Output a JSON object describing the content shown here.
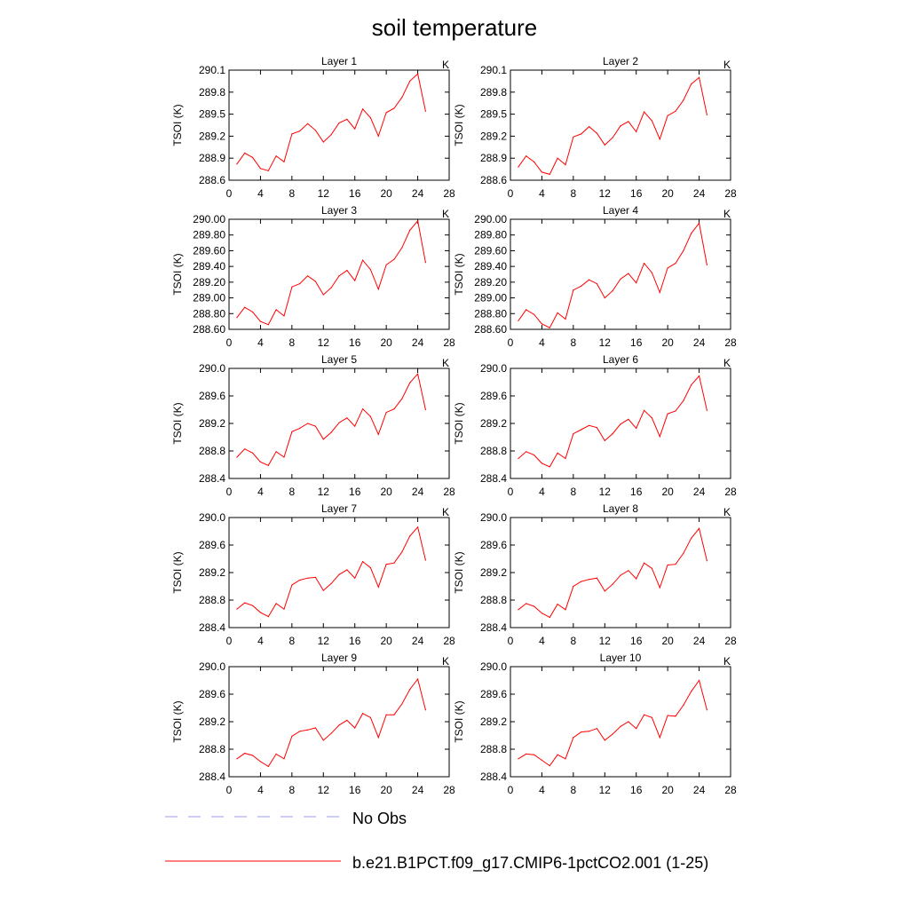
{
  "figure": {
    "title": "soil temperature"
  },
  "legend": {
    "obs_label": "No Obs",
    "obs_color": "#9999ff",
    "model_label": "b.e21.B1PCT.f09_g17.CMIP6-1pctCO2.001 (1-25)",
    "model_color": "#ff0000"
  },
  "chart_data": [
    {
      "type": "line",
      "title": "Layer 1",
      "units_label": "K",
      "ylabel": "TSOI  (K)",
      "xlim": [
        0,
        28
      ],
      "xticks": [
        0,
        4,
        8,
        12,
        16,
        20,
        24,
        28
      ],
      "ylim": [
        288.6,
        290.1
      ],
      "yticks": [
        "288.6",
        "288.9",
        "289.2",
        "289.5",
        "289.8",
        "290.1"
      ],
      "series": [
        {
          "name": "b.e21.B1PCT.f09_g17.CMIP6-1pctCO2.001 (1-25)",
          "x": [
            1,
            2,
            3,
            4,
            5,
            6,
            7,
            8,
            9,
            10,
            11,
            12,
            13,
            14,
            15,
            16,
            17,
            18,
            19,
            20,
            21,
            22,
            23,
            24,
            25
          ],
          "values": [
            288.82,
            288.97,
            288.91,
            288.76,
            288.73,
            288.93,
            288.85,
            289.23,
            289.27,
            289.37,
            289.28,
            289.12,
            289.22,
            289.38,
            289.43,
            289.3,
            289.57,
            289.45,
            289.2,
            289.52,
            289.58,
            289.73,
            289.95,
            290.05,
            289.54
          ]
        }
      ]
    },
    {
      "type": "line",
      "title": "Layer 2",
      "units_label": "K",
      "ylabel": "TSOI  (K)",
      "xlim": [
        0,
        28
      ],
      "xticks": [
        0,
        4,
        8,
        12,
        16,
        20,
        24,
        28
      ],
      "ylim": [
        288.6,
        290.1
      ],
      "yticks": [
        "288.6",
        "288.9",
        "289.2",
        "289.5",
        "289.8",
        "290.1"
      ],
      "series": [
        {
          "name": "b.e21.B1PCT.f09_g17.CMIP6-1pctCO2.001 (1-25)",
          "x": [
            1,
            2,
            3,
            4,
            5,
            6,
            7,
            8,
            9,
            10,
            11,
            12,
            13,
            14,
            15,
            16,
            17,
            18,
            19,
            20,
            21,
            22,
            23,
            24,
            25
          ],
          "values": [
            288.78,
            288.93,
            288.85,
            288.71,
            288.68,
            288.9,
            288.81,
            289.19,
            289.23,
            289.33,
            289.24,
            289.08,
            289.18,
            289.34,
            289.4,
            289.26,
            289.53,
            289.41,
            289.16,
            289.48,
            289.54,
            289.69,
            289.91,
            290.0,
            289.49
          ]
        }
      ]
    },
    {
      "type": "line",
      "title": "Layer 3",
      "units_label": "K",
      "ylabel": "TSOI  (K)",
      "xlim": [
        0,
        28
      ],
      "xticks": [
        0,
        4,
        8,
        12,
        16,
        20,
        24,
        28
      ],
      "ylim": [
        288.6,
        290.0
      ],
      "yticks": [
        "288.60",
        "288.80",
        "289.00",
        "289.20",
        "289.40",
        "289.60",
        "289.80",
        "290.00"
      ],
      "series": [
        {
          "name": "b.e21.B1PCT.f09_g17.CMIP6-1pctCO2.001 (1-25)",
          "x": [
            1,
            2,
            3,
            4,
            5,
            6,
            7,
            8,
            9,
            10,
            11,
            12,
            13,
            14,
            15,
            16,
            17,
            18,
            19,
            20,
            21,
            22,
            23,
            24,
            25
          ],
          "values": [
            288.75,
            288.88,
            288.82,
            288.7,
            288.66,
            288.85,
            288.77,
            289.14,
            289.18,
            289.28,
            289.21,
            289.04,
            289.13,
            289.28,
            289.35,
            289.22,
            289.48,
            289.36,
            289.11,
            289.42,
            289.49,
            289.64,
            289.86,
            289.98,
            289.45
          ]
        }
      ]
    },
    {
      "type": "line",
      "title": "Layer 4",
      "units_label": "K",
      "ylabel": "TSOI  (K)",
      "xlim": [
        0,
        28
      ],
      "xticks": [
        0,
        4,
        8,
        12,
        16,
        20,
        24,
        28
      ],
      "ylim": [
        288.6,
        290.0
      ],
      "yticks": [
        "288.60",
        "288.80",
        "289.00",
        "289.20",
        "289.40",
        "289.60",
        "289.80",
        "290.00"
      ],
      "series": [
        {
          "name": "b.e21.B1PCT.f09_g17.CMIP6-1pctCO2.001 (1-25)",
          "x": [
            1,
            2,
            3,
            4,
            5,
            6,
            7,
            8,
            9,
            10,
            11,
            12,
            13,
            14,
            15,
            16,
            17,
            18,
            19,
            20,
            21,
            22,
            23,
            24,
            25
          ],
          "values": [
            288.71,
            288.85,
            288.79,
            288.67,
            288.62,
            288.81,
            288.73,
            289.1,
            289.15,
            289.23,
            289.18,
            289.0,
            289.09,
            289.24,
            289.31,
            289.19,
            289.44,
            289.32,
            289.07,
            289.38,
            289.44,
            289.6,
            289.82,
            289.95,
            289.42
          ]
        }
      ]
    },
    {
      "type": "line",
      "title": "Layer 5",
      "units_label": "K",
      "ylabel": "TSOI  (K)",
      "xlim": [
        0,
        28
      ],
      "xticks": [
        0,
        4,
        8,
        12,
        16,
        20,
        24,
        28
      ],
      "ylim": [
        288.4,
        290.0
      ],
      "yticks": [
        "288.4",
        "288.8",
        "289.2",
        "289.6",
        "290.0"
      ],
      "series": [
        {
          "name": "b.e21.B1PCT.f09_g17.CMIP6-1pctCO2.001 (1-25)",
          "x": [
            1,
            2,
            3,
            4,
            5,
            6,
            7,
            8,
            9,
            10,
            11,
            12,
            13,
            14,
            15,
            16,
            17,
            18,
            19,
            20,
            21,
            22,
            23,
            24,
            25
          ],
          "values": [
            288.71,
            288.83,
            288.77,
            288.64,
            288.59,
            288.79,
            288.71,
            289.08,
            289.13,
            289.2,
            289.16,
            288.97,
            289.07,
            289.21,
            289.28,
            289.16,
            289.41,
            289.3,
            289.04,
            289.36,
            289.41,
            289.56,
            289.79,
            289.92,
            289.4
          ]
        }
      ]
    },
    {
      "type": "line",
      "title": "Layer 6",
      "units_label": "K",
      "ylabel": "TSOI  (K)",
      "xlim": [
        0,
        28
      ],
      "xticks": [
        0,
        4,
        8,
        12,
        16,
        20,
        24,
        28
      ],
      "ylim": [
        288.4,
        290.0
      ],
      "yticks": [
        "288.4",
        "288.8",
        "289.2",
        "289.6",
        "290.0"
      ],
      "series": [
        {
          "name": "b.e21.B1PCT.f09_g17.CMIP6-1pctCO2.001 (1-25)",
          "x": [
            1,
            2,
            3,
            4,
            5,
            6,
            7,
            8,
            9,
            10,
            11,
            12,
            13,
            14,
            15,
            16,
            17,
            18,
            19,
            20,
            21,
            22,
            23,
            24,
            25
          ],
          "values": [
            288.69,
            288.79,
            288.74,
            288.62,
            288.57,
            288.77,
            288.69,
            289.05,
            289.11,
            289.17,
            289.14,
            288.95,
            289.05,
            289.19,
            289.26,
            289.13,
            289.39,
            289.28,
            289.01,
            289.34,
            289.38,
            289.53,
            289.76,
            289.89,
            289.39
          ]
        }
      ]
    },
    {
      "type": "line",
      "title": "Layer 7",
      "units_label": "K",
      "ylabel": "TSOI  (K)",
      "xlim": [
        0,
        28
      ],
      "xticks": [
        0,
        4,
        8,
        12,
        16,
        20,
        24,
        28
      ],
      "ylim": [
        288.4,
        290.0
      ],
      "yticks": [
        "288.4",
        "288.8",
        "289.2",
        "289.6",
        "290.0"
      ],
      "series": [
        {
          "name": "b.e21.B1PCT.f09_g17.CMIP6-1pctCO2.001 (1-25)",
          "x": [
            1,
            2,
            3,
            4,
            5,
            6,
            7,
            8,
            9,
            10,
            11,
            12,
            13,
            14,
            15,
            16,
            17,
            18,
            19,
            20,
            21,
            22,
            23,
            24,
            25
          ],
          "values": [
            288.67,
            288.76,
            288.72,
            288.62,
            288.56,
            288.75,
            288.67,
            289.02,
            289.09,
            289.12,
            289.13,
            288.94,
            289.04,
            289.17,
            289.24,
            289.12,
            289.36,
            289.27,
            288.99,
            289.32,
            289.34,
            289.5,
            289.73,
            289.86,
            289.38
          ]
        }
      ]
    },
    {
      "type": "line",
      "title": "Layer 8",
      "units_label": "K",
      "ylabel": "TSOI  (K)",
      "xlim": [
        0,
        28
      ],
      "xticks": [
        0,
        4,
        8,
        12,
        16,
        20,
        24,
        28
      ],
      "ylim": [
        288.4,
        290.0
      ],
      "yticks": [
        "288.4",
        "288.8",
        "289.2",
        "289.6",
        "290.0"
      ],
      "series": [
        {
          "name": "b.e21.B1PCT.f09_g17.CMIP6-1pctCO2.001 (1-25)",
          "x": [
            1,
            2,
            3,
            4,
            5,
            6,
            7,
            8,
            9,
            10,
            11,
            12,
            13,
            14,
            15,
            16,
            17,
            18,
            19,
            20,
            21,
            22,
            23,
            24,
            25
          ],
          "values": [
            288.66,
            288.75,
            288.71,
            288.61,
            288.55,
            288.74,
            288.66,
            289.0,
            289.07,
            289.1,
            289.12,
            288.93,
            289.03,
            289.16,
            289.23,
            289.11,
            289.34,
            289.26,
            288.98,
            289.31,
            289.32,
            289.48,
            289.7,
            289.84,
            289.37
          ]
        }
      ]
    },
    {
      "type": "line",
      "title": "Layer 9",
      "units_label": "K",
      "ylabel": "TSOI  (K)",
      "xlim": [
        0,
        28
      ],
      "xticks": [
        0,
        4,
        8,
        12,
        16,
        20,
        24,
        28
      ],
      "ylim": [
        288.4,
        290.0
      ],
      "yticks": [
        "288.4",
        "288.8",
        "289.2",
        "289.6",
        "290.0"
      ],
      "series": [
        {
          "name": "b.e21.B1PCT.f09_g17.CMIP6-1pctCO2.001 (1-25)",
          "x": [
            1,
            2,
            3,
            4,
            5,
            6,
            7,
            8,
            9,
            10,
            11,
            12,
            13,
            14,
            15,
            16,
            17,
            18,
            19,
            20,
            21,
            22,
            23,
            24,
            25
          ],
          "values": [
            288.66,
            288.74,
            288.71,
            288.62,
            288.55,
            288.73,
            288.66,
            288.99,
            289.06,
            289.08,
            289.11,
            288.93,
            289.03,
            289.15,
            289.22,
            289.11,
            289.32,
            289.26,
            288.97,
            289.3,
            289.3,
            289.46,
            289.67,
            289.82,
            289.37
          ]
        }
      ]
    },
    {
      "type": "line",
      "title": "Layer 10",
      "units_label": "K",
      "ylabel": "TSOI  (K)",
      "xlim": [
        0,
        28
      ],
      "xticks": [
        0,
        4,
        8,
        12,
        16,
        20,
        24,
        28
      ],
      "ylim": [
        288.4,
        290.0
      ],
      "yticks": [
        "288.4",
        "288.8",
        "289.2",
        "289.6",
        "290.0"
      ],
      "series": [
        {
          "name": "b.e21.B1PCT.f09_g17.CMIP6-1pctCO2.001 (1-25)",
          "x": [
            1,
            2,
            3,
            4,
            5,
            6,
            7,
            8,
            9,
            10,
            11,
            12,
            13,
            14,
            15,
            16,
            17,
            18,
            19,
            20,
            21,
            22,
            23,
            24,
            25
          ],
          "values": [
            288.66,
            288.73,
            288.72,
            288.64,
            288.56,
            288.72,
            288.66,
            288.97,
            289.05,
            289.06,
            289.1,
            288.93,
            289.02,
            289.13,
            289.2,
            289.1,
            289.3,
            289.26,
            288.97,
            289.29,
            289.28,
            289.44,
            289.64,
            289.8,
            289.37
          ]
        }
      ]
    }
  ]
}
